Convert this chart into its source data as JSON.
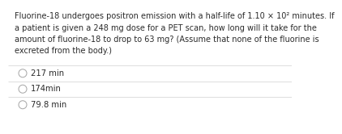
{
  "question_lines": [
    "Fluorine-18 undergoes positron emission with a half-life of 1.10 × 10² minutes. If",
    "a patient is given a 248 mg dose for a PET scan, how long will it take for the",
    "amount of fluorine-18 to drop to 63 mg? (Assume that none of the fluorine is",
    "excreted from the body.)"
  ],
  "options": [
    "217 min",
    "174min",
    "79.8 min"
  ],
  "bg_color": "#ffffff",
  "text_color": "#2b2b2b",
  "divider_color": "#d0d0d0",
  "question_fontsize": 7.0,
  "option_fontsize": 7.2,
  "circle_color": "#aaaaaa"
}
